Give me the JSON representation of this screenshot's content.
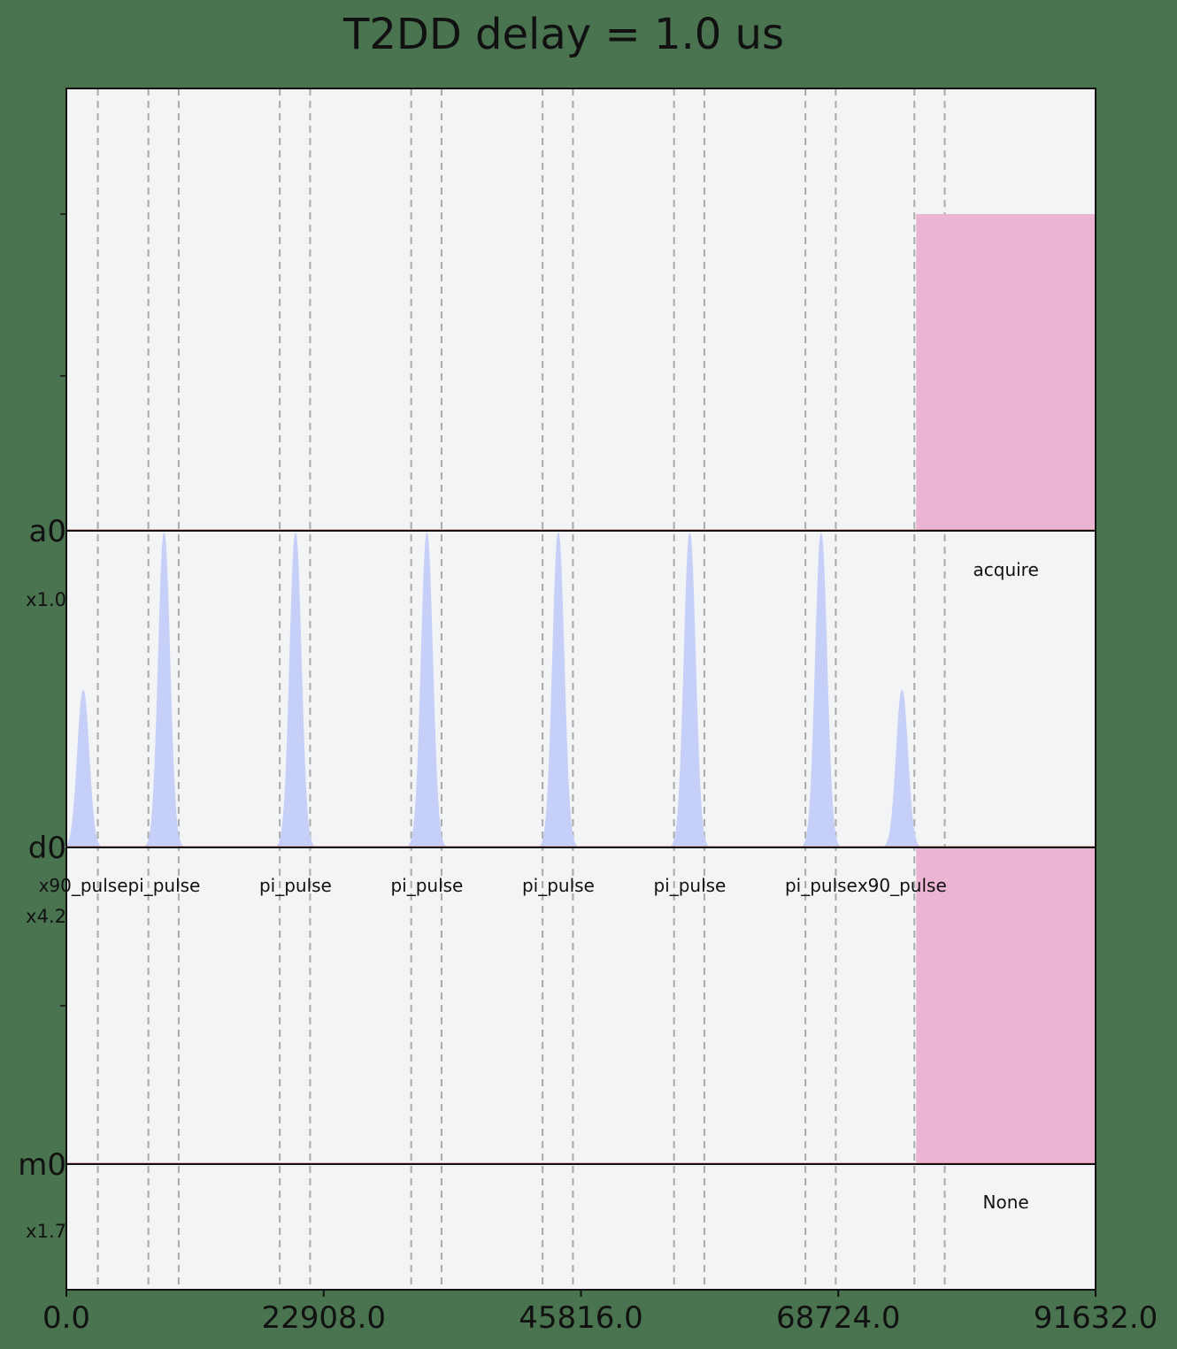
{
  "chart_data": {
    "type": "pulse-schedule",
    "title": "T2DD delay = 1.0 us",
    "xlim": [
      0,
      91632
    ],
    "x_ticks": [
      0,
      22908,
      45816,
      68724,
      91632
    ],
    "x_tick_labels": [
      "0.0",
      "22908.0",
      "45816.0",
      "68724.0",
      "91632.0"
    ],
    "channels": [
      {
        "name": "a0",
        "scale": "x1.0"
      },
      {
        "name": "d0",
        "scale": "x4.2"
      },
      {
        "name": "m0",
        "scale": "x1.7"
      }
    ],
    "barriers": [
      2800,
      7300,
      10000,
      19000,
      21700,
      30700,
      33400,
      42400,
      45100,
      54100,
      56800,
      65800,
      68500,
      75500,
      78200
    ],
    "acquire": {
      "channel": "a0",
      "start": 75660,
      "end": 91632,
      "label": "acquire"
    },
    "measure": {
      "channel": "m0",
      "start": 75660,
      "end": 91632,
      "label": "None"
    },
    "pulses": [
      {
        "channel": "d0",
        "center": 1500,
        "amplitude": 0.5,
        "label": "x90_pulse"
      },
      {
        "channel": "d0",
        "center": 8700,
        "amplitude": 1.0,
        "label": "pi_pulse"
      },
      {
        "channel": "d0",
        "center": 20400,
        "amplitude": 1.0,
        "label": "pi_pulse"
      },
      {
        "channel": "d0",
        "center": 32100,
        "amplitude": 1.0,
        "label": "pi_pulse"
      },
      {
        "channel": "d0",
        "center": 43800,
        "amplitude": 1.0,
        "label": "pi_pulse"
      },
      {
        "channel": "d0",
        "center": 55500,
        "amplitude": 1.0,
        "label": "pi_pulse"
      },
      {
        "channel": "d0",
        "center": 67200,
        "amplitude": 1.0,
        "label": "pi_pulse"
      },
      {
        "channel": "d0",
        "center": 74400,
        "amplitude": 0.5,
        "label": "x90_pulse"
      }
    ],
    "colors": {
      "plot_bg": "#f3f4f6",
      "page_bg": "#4a7350",
      "pulse_fill": "#c5cff7",
      "acquire_fill": "#ebb4d2",
      "barrier": "#aaaaaa"
    }
  }
}
